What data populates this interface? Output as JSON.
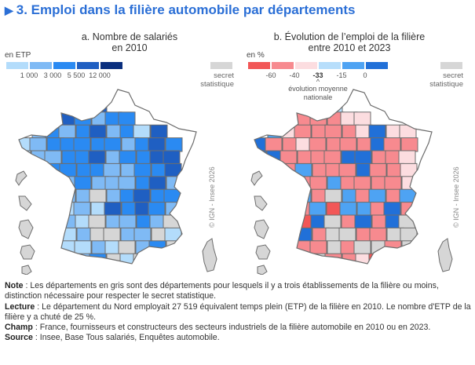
{
  "title": "3. Emploi dans la filière automobile par départements",
  "title_icon": "triangle-right-icon",
  "chart_data": [
    {
      "type": "choropleth-map",
      "title": "a. Nombre de salariés en 2010",
      "title_lines": [
        "a. Nombre de salariés",
        "en 2010"
      ],
      "unit": "en ETP",
      "legend": {
        "classes": [
          {
            "label": "< 1 000",
            "color": "#b3dcfb"
          },
          {
            "label": "1 000 – 3 000",
            "color": "#7fbaf5"
          },
          {
            "label": "3 000 – 5 500",
            "color": "#2a8af2"
          },
          {
            "label": "5 500 – 12 000",
            "color": "#1f5fc2"
          },
          {
            "label": "≥ 12 000",
            "color": "#0a2f7e"
          }
        ],
        "ticks": [
          "1 000",
          "3 000",
          "5 500",
          "12 000"
        ],
        "secret": {
          "label_lines": [
            "secret",
            "statistique"
          ],
          "color": "#d6d6d6"
        }
      },
      "copyright": "© IGN - Insee 2026"
    },
    {
      "type": "choropleth-map",
      "title": "b. Évolution de l’emploi de la filière entre 2010 et 2023",
      "title_lines": [
        "b. Évolution de l’emploi de la filière",
        "entre 2010 et 2023"
      ],
      "unit": "en %",
      "legend": {
        "classes": [
          {
            "label": "< -60",
            "color": "#f25757"
          },
          {
            "label": "-60 – -40",
            "color": "#f78a8f"
          },
          {
            "label": "-40 – -33",
            "color": "#fcdde0"
          },
          {
            "label": "-33 – -15",
            "color": "#b7defb"
          },
          {
            "label": "-15 – 0",
            "color": "#4ea3f3"
          },
          {
            "label": "≥ 0",
            "color": "#2170d8"
          }
        ],
        "ticks": [
          "-60",
          "-40",
          "-33",
          "-15",
          "0"
        ],
        "highlight_tick": "-33",
        "average_note_lines": [
          "évolution moyenne",
          "nationale"
        ],
        "average_marker": "^",
        "secret": {
          "label_lines": [
            "secret",
            "statistique"
          ],
          "color": "#d6d6d6"
        }
      },
      "copyright": "© IGN - Insee 2026"
    }
  ],
  "notes": {
    "note_label": "Note",
    "note_text": " : Les départements en gris sont des départements pour lesquels il y a trois établissements de la filière ou moins, distinction nécessaire pour respecter le secret statistique.",
    "lecture_label": "Lecture",
    "lecture_text": " : Le département du Nord employait 27 519 équivalent temps plein (ETP) de la filière en 2010. Le nombre d'ETP de la filière y a chuté de 25 %.",
    "champ_label": "Champ",
    "champ_text": " : France, fournisseurs et constructeurs des secteurs industriels de la filière automobile en 2010 ou en 2023.",
    "source_label": "Source",
    "source_text": " : Insee, Base Tous salariés, Enquêtes automobile."
  },
  "maps": {
    "a": [
      "....dd......",
      "...cdd......",
      "..ddcbcc....",
      ".bcbcdbcad..",
      "abcccccbcdc.",
      "abbccdbccdd.",
      "..ccccbbccd.",
      "..cbcbbbcdb.",
      "..cbbsbcdcc.",
      "..aabadcdcb.",
      "..cbasbbcbs.",
      "..aabssbbsa.",
      "..aaabasbcs.",
      "..asbcsasas.",
      "...sssss...."
    ],
    "b": [
      "....bd......",
      "...bbd......",
      "..cbbbcc....",
      ".ecbbbbcfcc.",
      "fbbcbbbbfbb.",
      "ffbbbbffbbc.",
      "..bebbbfbbc.",
      "..ebbebbbbc.",
      "..bebsebebe.",
      "..ebeaeebfb.",
      "..bafsbfbfs.",
      "..bfbssbbss.",
      "..fbbsbssbs.",
      "..efsbbcass.",
      "...sssss...."
    ]
  }
}
